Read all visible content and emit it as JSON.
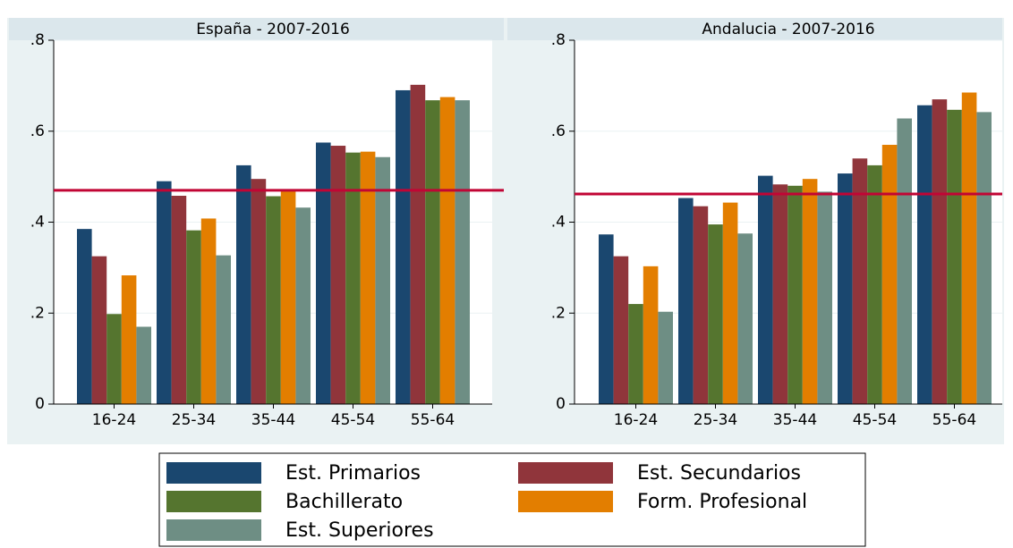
{
  "legend": [
    {
      "name": "Est. Primarios",
      "color": "#1a476f"
    },
    {
      "name": "Est. Secundarios",
      "color": "#90353b"
    },
    {
      "name": "Bachillerato",
      "color": "#55752f"
    },
    {
      "name": "Form. Profesional",
      "color": "#e37e00"
    },
    {
      "name": "Est. Superiores",
      "color": "#6e8e84"
    }
  ],
  "chart_data": [
    {
      "type": "bar",
      "title": "España - 2007-2016",
      "categories": [
        "16-24",
        "25-34",
        "35-44",
        "45-54",
        "55-64"
      ],
      "series": [
        {
          "values": [
            0.385,
            0.49,
            0.525,
            0.575,
            0.69
          ]
        },
        {
          "values": [
            0.325,
            0.458,
            0.495,
            0.568,
            0.702
          ]
        },
        {
          "values": [
            0.198,
            0.382,
            0.457,
            0.553,
            0.668
          ]
        },
        {
          "values": [
            0.283,
            0.408,
            0.472,
            0.555,
            0.675
          ]
        },
        {
          "values": [
            0.17,
            0.327,
            0.432,
            0.543,
            0.668
          ]
        }
      ],
      "reference_line": 0.47,
      "reference_color": "#c10534",
      "ylim": [
        0,
        0.8
      ],
      "yticks": [
        0,
        {
          "value": 0.2,
          "label": ".2"
        },
        {
          "value": 0.4,
          "label": ".4"
        },
        {
          "value": 0.6,
          "label": ".6"
        },
        {
          "value": 0.8,
          "label": ".8"
        }
      ],
      "grid": true
    },
    {
      "type": "bar",
      "title": "Andalucia - 2007-2016",
      "categories": [
        "16-24",
        "25-34",
        "35-44",
        "45-54",
        "55-64"
      ],
      "series": [
        {
          "values": [
            0.373,
            0.453,
            0.502,
            0.507,
            0.657
          ]
        },
        {
          "values": [
            0.325,
            0.435,
            0.483,
            0.54,
            0.67
          ]
        },
        {
          "values": [
            0.22,
            0.395,
            0.48,
            0.525,
            0.647
          ]
        },
        {
          "values": [
            0.303,
            0.443,
            0.495,
            0.57,
            0.685
          ]
        },
        {
          "values": [
            0.203,
            0.375,
            0.467,
            0.628,
            0.642
          ]
        }
      ],
      "reference_line": 0.462,
      "reference_color": "#c10534",
      "ylim": [
        0,
        0.8
      ],
      "yticks": [
        0,
        {
          "value": 0.2,
          "label": ".2"
        },
        {
          "value": 0.4,
          "label": ".4"
        },
        {
          "value": 0.6,
          "label": ".6"
        },
        {
          "value": 0.8,
          "label": ".8"
        }
      ],
      "grid": true
    }
  ]
}
